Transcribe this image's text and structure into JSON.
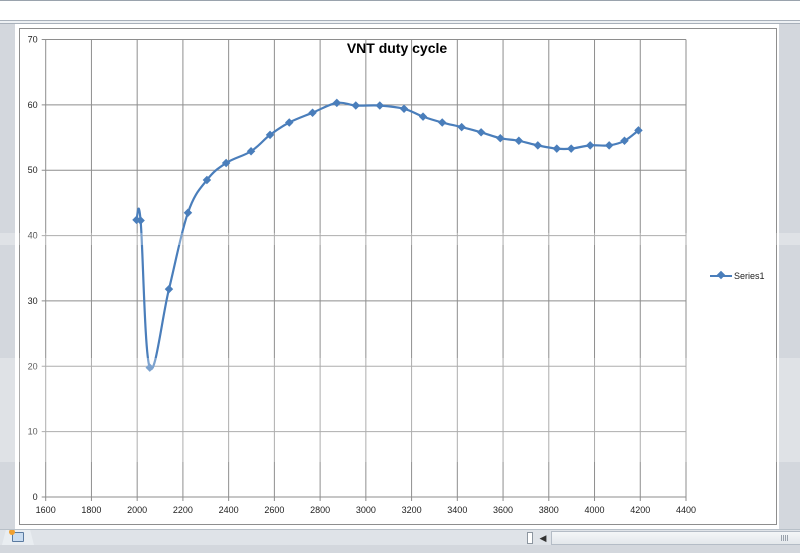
{
  "window": {
    "sheet_tabs": [],
    "insert_sheet_tooltip": "Insert Worksheet"
  },
  "chart_data": {
    "type": "line",
    "title": "VNT duty cycle",
    "xlabel": "",
    "ylabel": "",
    "xlim": [
      1600,
      4400
    ],
    "ylim": [
      0,
      70
    ],
    "x_ticks": [
      1600,
      1800,
      2000,
      2200,
      2400,
      2600,
      2800,
      3000,
      3200,
      3400,
      3600,
      3800,
      4000,
      4200,
      4400
    ],
    "y_ticks": [
      0,
      10,
      20,
      30,
      40,
      50,
      60,
      70
    ],
    "grid": true,
    "smoothed": true,
    "legend_position": "right",
    "series": [
      {
        "name": "Series1",
        "color": "#4a7ebb",
        "marker": "diamond",
        "x": [
          1997,
          2015,
          2055,
          2139,
          2222,
          2305,
          2389,
          2498,
          2581,
          2665,
          2767,
          2873,
          2956,
          3061,
          3167,
          3250,
          3334,
          3419,
          3504,
          3588,
          3669,
          3752,
          3835,
          3898,
          3981,
          4064,
          4131,
          4192
        ],
        "y": [
          42.4,
          42.3,
          19.8,
          31.8,
          43.5,
          48.5,
          51.1,
          52.9,
          55.4,
          57.3,
          58.8,
          60.3,
          59.9,
          59.9,
          59.4,
          58.2,
          57.3,
          56.6,
          55.8,
          54.9,
          54.5,
          53.8,
          53.3,
          53.3,
          53.8,
          53.8,
          54.5,
          56.1
        ]
      }
    ]
  },
  "legend": {
    "items": [
      {
        "label": "Series1"
      }
    ]
  },
  "colors": {
    "series": "#4a7ebb",
    "gridline": "#8e8e8e",
    "chart_background": "#ffffff",
    "app_background": "#d3d7dd"
  },
  "icons": {
    "insert_sheet": "insert-worksheet-icon",
    "scroll_left": "◀",
    "splitter": "tab-splitter-handle",
    "grip": "scroll-grip"
  }
}
